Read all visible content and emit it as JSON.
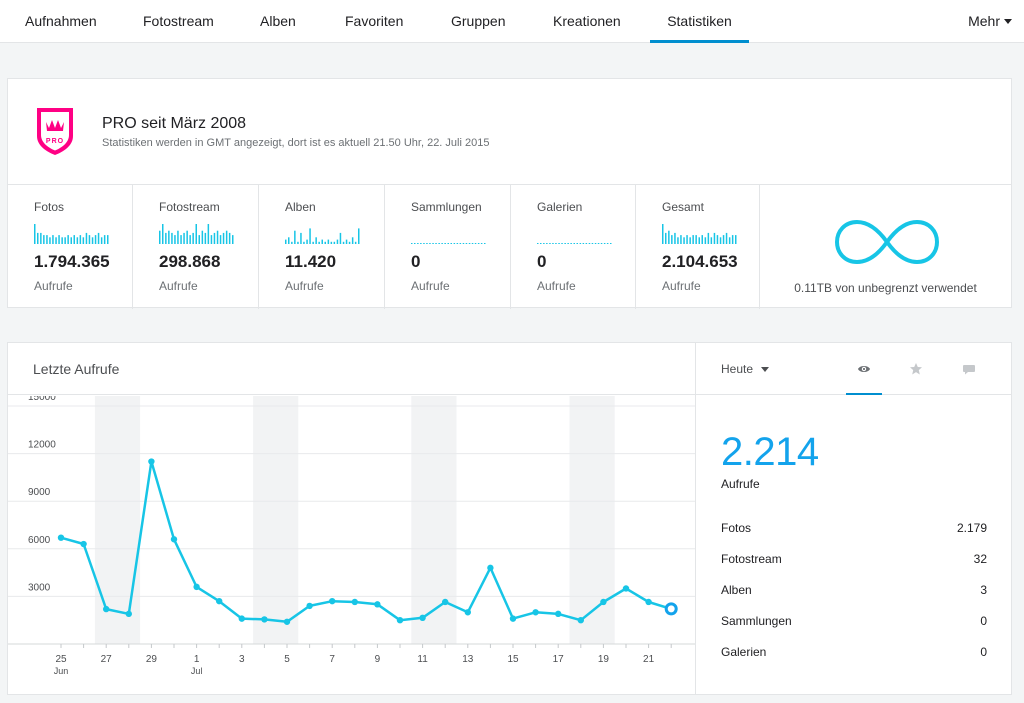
{
  "nav": {
    "tabs": [
      "Aufnahmen",
      "Fotostream",
      "Alben",
      "Favoriten",
      "Gruppen",
      "Kreationen",
      "Statistiken"
    ],
    "active": "Statistiken",
    "more_label": "Mehr"
  },
  "pro": {
    "badge_text": "PRO",
    "title": "PRO seit März 2008",
    "subtitle": "Statistiken werden in GMT angezeigt, dort ist es aktuell 21.50 Uhr, 22. Juli 2015"
  },
  "stats": [
    {
      "label": "Fotos",
      "value": "1.794.365",
      "sub": "Aufrufe",
      "spark": [
        9,
        5,
        5,
        4,
        4,
        3,
        4,
        3,
        4,
        3,
        3,
        4,
        3,
        4,
        3,
        4,
        3,
        5,
        4,
        3,
        4,
        5,
        3,
        4,
        4
      ]
    },
    {
      "label": "Fotostream",
      "value": "298.868",
      "sub": "Aufrufe",
      "spark": [
        6,
        9,
        5,
        6,
        5,
        4,
        6,
        4,
        5,
        6,
        4,
        5,
        9,
        4,
        6,
        5,
        9,
        4,
        5,
        6,
        4,
        5,
        6,
        5,
        4
      ]
    },
    {
      "label": "Alben",
      "value": "11.420",
      "sub": "Aufrufe",
      "spark": [
        2,
        3,
        1,
        6,
        1,
        5,
        1,
        2,
        7,
        1,
        3,
        1,
        2,
        1,
        2,
        1,
        1,
        2,
        5,
        1,
        2,
        1,
        3,
        1,
        7
      ]
    },
    {
      "label": "Sammlungen",
      "value": "0",
      "sub": "Aufrufe",
      "spark": [
        0,
        0,
        0,
        0,
        0,
        0,
        0,
        0,
        0,
        0,
        0,
        0,
        0,
        0,
        0,
        0,
        0,
        0,
        0,
        0,
        0,
        0,
        0,
        0,
        0
      ]
    },
    {
      "label": "Galerien",
      "value": "0",
      "sub": "Aufrufe",
      "spark": [
        0,
        0,
        0,
        0,
        0,
        0,
        0,
        0,
        0,
        0,
        0,
        0,
        0,
        0,
        0,
        0,
        0,
        0,
        0,
        0,
        0,
        0,
        0,
        0,
        0
      ]
    },
    {
      "label": "Gesamt",
      "value": "2.104.653",
      "sub": "Aufrufe",
      "spark": [
        9,
        5,
        6,
        4,
        5,
        3,
        4,
        3,
        4,
        3,
        4,
        4,
        3,
        4,
        3,
        5,
        3,
        5,
        4,
        3,
        4,
        5,
        3,
        4,
        4
      ]
    }
  ],
  "storage": {
    "text": "0.11TB von unbegrenzt verwendet"
  },
  "recent": {
    "title": "Letzte Aufrufe"
  },
  "side": {
    "period": "Heute",
    "icons": [
      "eye-icon",
      "star-icon",
      "comment-icon"
    ],
    "active_icon": "eye-icon",
    "big_value": "2.214",
    "big_label": "Aufrufe",
    "rows": [
      {
        "label": "Fotos",
        "value": "2.179"
      },
      {
        "label": "Fotostream",
        "value": "32"
      },
      {
        "label": "Alben",
        "value": "3"
      },
      {
        "label": "Sammlungen",
        "value": "0"
      },
      {
        "label": "Galerien",
        "value": "0"
      }
    ]
  },
  "colors": {
    "accent": "#13a3ec",
    "line": "#17c5e6",
    "weekend": "#f2f3f4"
  },
  "chart_data": {
    "type": "line",
    "title": "",
    "xlabel": "",
    "ylabel": "",
    "ylim": [
      0,
      15000
    ],
    "yticks": [
      3000,
      6000,
      9000,
      12000,
      15000
    ],
    "x": [
      "25 Jun",
      "26 Jun",
      "27 Jun",
      "28 Jun",
      "29 Jun",
      "30 Jun",
      "1 Jul",
      "2 Jul",
      "3 Jul",
      "4 Jul",
      "5 Jul",
      "6 Jul",
      "7 Jul",
      "8 Jul",
      "9 Jul",
      "10 Jul",
      "11 Jul",
      "12 Jul",
      "13 Jul",
      "14 Jul",
      "15 Jul",
      "16 Jul",
      "17 Jul",
      "18 Jul",
      "19 Jul",
      "20 Jul",
      "21 Jul",
      "22 Jul"
    ],
    "xticks": [
      {
        "label": "25",
        "sub": "Jun"
      },
      {
        "label": "27"
      },
      {
        "label": "29"
      },
      {
        "label": "1",
        "sub": "Jul"
      },
      {
        "label": "3"
      },
      {
        "label": "5"
      },
      {
        "label": "7"
      },
      {
        "label": "9"
      },
      {
        "label": "11"
      },
      {
        "label": "13"
      },
      {
        "label": "15"
      },
      {
        "label": "17"
      },
      {
        "label": "19"
      },
      {
        "label": "21"
      }
    ],
    "series": [
      {
        "values": [
          6700,
          6300,
          2200,
          1900,
          11500,
          6600,
          3600,
          2700,
          1600,
          1550,
          1400,
          2400,
          2700,
          2650,
          2500,
          1500,
          1650,
          2650,
          2000,
          4800,
          1600,
          2000,
          1900,
          1500,
          2650,
          3500,
          2650,
          2214
        ]
      }
    ],
    "weekend_bands": [
      [
        2,
        3
      ],
      [
        9,
        10
      ],
      [
        16,
        17
      ],
      [
        23,
        24
      ]
    ],
    "grid": true
  }
}
